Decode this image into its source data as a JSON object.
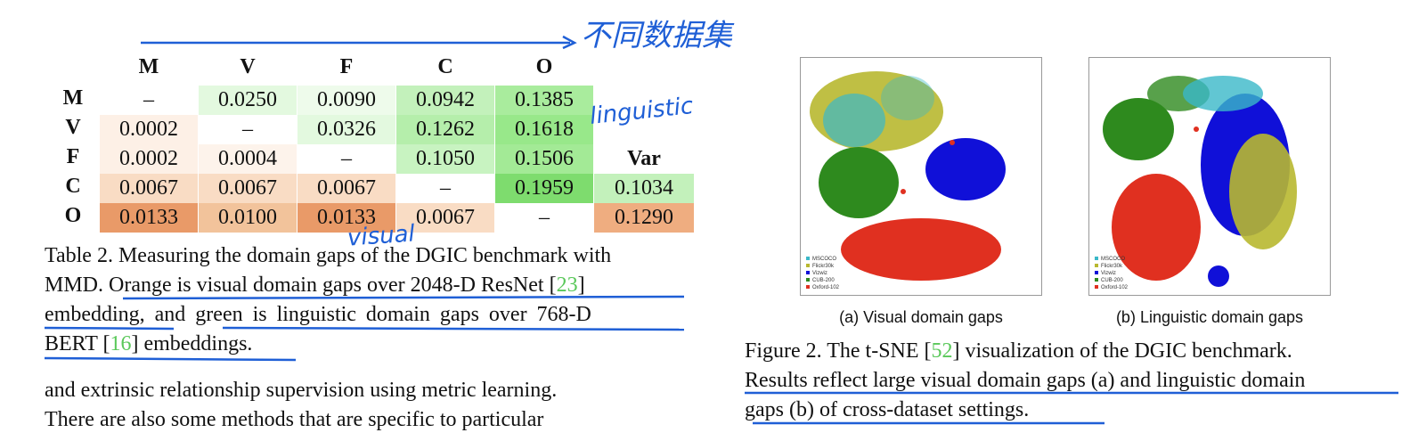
{
  "table": {
    "col_headers": [
      "M",
      "V",
      "F",
      "C",
      "O"
    ],
    "row_headers": [
      "M",
      "V",
      "F",
      "C",
      "O"
    ],
    "rows": [
      [
        "–",
        "0.0250",
        "0.0090",
        "0.0942",
        "0.1385"
      ],
      [
        "0.0002",
        "–",
        "0.0326",
        "0.1262",
        "0.1618"
      ],
      [
        "0.0002",
        "0.0004",
        "–",
        "0.1050",
        "0.1506"
      ],
      [
        "0.0067",
        "0.0067",
        "0.0067",
        "–",
        "0.1959"
      ],
      [
        "0.0133",
        "0.0100",
        "0.0133",
        "0.0067",
        "–"
      ]
    ],
    "var_header": "Var",
    "var_values": [
      "0.1034",
      "0.1290"
    ],
    "colors": {
      "green_lightest": "#e3f9df",
      "green_light": "#d3f5cd",
      "green_mid": "#c3f1bb",
      "green_strong": "#9fea92",
      "green_strongest": "#7edc6e",
      "orange_lightest": "#fdf0e6",
      "orange_light": "#f9dcc4",
      "orange_mid": "#f2c39b",
      "orange_strong": "#e99a68",
      "orange_strongest": "#efad80"
    }
  },
  "table_caption": {
    "line1": "Table 2. Measuring the domain gaps of the DGIC benchmark with",
    "line2": "MMD. Orange is visual domain gaps over 2048-D ResNet [",
    "line2_ref": "23",
    "line2_end": "]",
    "line3": "embedding, and green is linguistic domain gaps over 768-D",
    "line4a": "BERT [",
    "line4_ref": "16",
    "line4b": "] embeddings."
  },
  "body_text": {
    "line1": "and extrinsic relationship supervision using metric learning.",
    "line2": "There are also some methods that are specific to particular"
  },
  "figure": {
    "panel_a_label": "(a) Visual domain gaps",
    "panel_b_label": "(b) Linguistic domain gaps",
    "legend": [
      "MSCOCO",
      "Flickr30k",
      "Vizwiz",
      "CUB-200",
      "Oxford-102"
    ],
    "legend_colors": [
      "#3ab8c8",
      "#b8b830",
      "#1010d8",
      "#2e8a1e",
      "#e03020"
    ],
    "caption_line1a": "Figure 2.  The t-SNE [",
    "caption_ref": "52",
    "caption_line1b": "] visualization of the DGIC benchmark.",
    "caption_line2": "Results reflect large visual domain gaps (a) and linguistic domain",
    "caption_line3": "gaps (b) of cross-dataset settings."
  },
  "annotations": {
    "chinese": "不同数据集",
    "linguistic": "linguistic",
    "visual": "visual",
    "pen_color": "#1f5fd6"
  }
}
